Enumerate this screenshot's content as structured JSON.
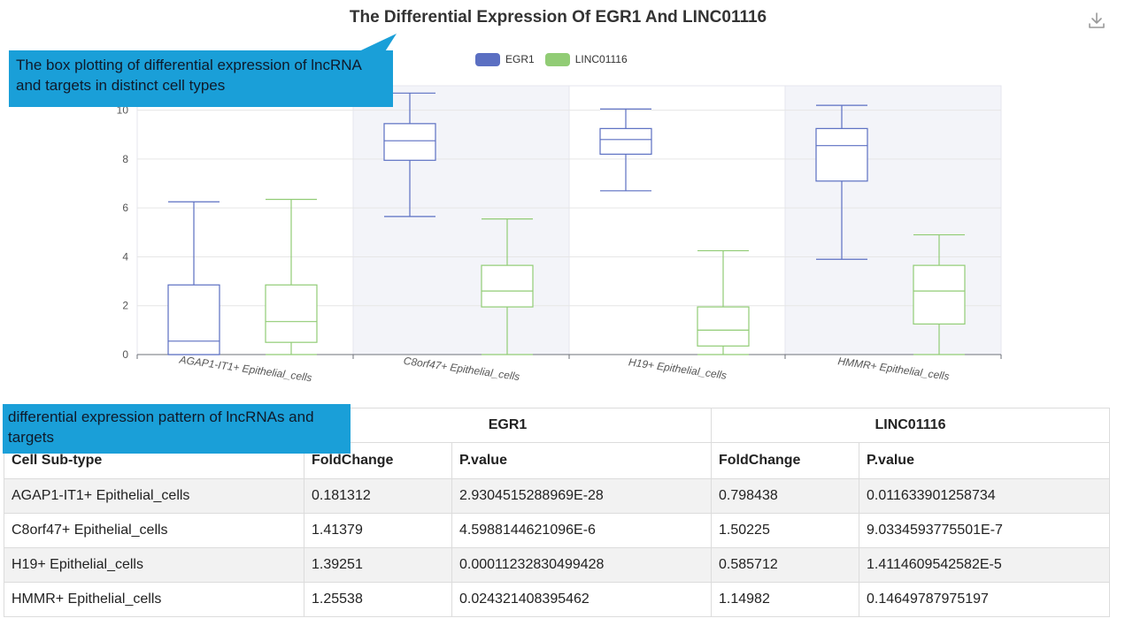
{
  "chart": {
    "title": "The Differential Expression Of EGR1 And LINC01116"
  },
  "colors": {
    "egr1": "#5b6fc2",
    "linc": "#91cc75",
    "callout_bg": "#1a9fd8",
    "alt_band": "#f3f4f9"
  },
  "icons": {
    "download": "download-icon"
  },
  "annotations": {
    "top": "The box plotting of differential expression of lncRNA and targets in distinct cell types",
    "bottom": "differential expression pattern of lncRNAs and targets"
  },
  "chart_data": {
    "type": "boxplot",
    "title": "The Differential Expression Of EGR1 And LINC01116",
    "categories": [
      "AGAP1-IT1+ Epithelial_cells",
      "C8orf47+ Epithelial_cells",
      "H19+ Epithelial_cells",
      "HMMR+ Epithelial_cells"
    ],
    "ylim": [
      0,
      11
    ],
    "yticks": [
      0,
      2,
      4,
      6,
      8,
      10
    ],
    "legend_position": "top-center",
    "grid": true,
    "series": [
      {
        "name": "EGR1",
        "boxes": [
          {
            "min": 0,
            "q1": 0,
            "median": 0.55,
            "q3": 2.85,
            "max": 6.25
          },
          {
            "min": 5.65,
            "q1": 7.95,
            "median": 8.75,
            "q3": 9.45,
            "max": 10.7
          },
          {
            "min": 6.7,
            "q1": 8.2,
            "median": 8.8,
            "q3": 9.25,
            "max": 10.05
          },
          {
            "min": 3.9,
            "q1": 7.1,
            "median": 8.55,
            "q3": 9.25,
            "max": 10.2
          }
        ]
      },
      {
        "name": "LINC01116",
        "boxes": [
          {
            "min": 0,
            "q1": 0.5,
            "median": 1.35,
            "q3": 2.85,
            "max": 6.35
          },
          {
            "min": 0,
            "q1": 1.95,
            "median": 2.6,
            "q3": 3.65,
            "max": 5.55
          },
          {
            "min": 0,
            "q1": 0.35,
            "median": 1.0,
            "q3": 1.95,
            "max": 4.25
          },
          {
            "min": 0,
            "q1": 1.25,
            "median": 2.6,
            "q3": 3.65,
            "max": 4.9
          }
        ]
      }
    ]
  },
  "table": {
    "group_headers": [
      "EGR1",
      "LINC01116"
    ],
    "columns": [
      "Cell Sub-type",
      "FoldChange",
      "P.value",
      "FoldChange",
      "P.value"
    ],
    "rows": [
      [
        "AGAP1-IT1+ Epithelial_cells",
        "0.181312",
        "2.9304515288969E-28",
        "0.798438",
        "0.011633901258734"
      ],
      [
        "C8orf47+ Epithelial_cells",
        "1.41379",
        "4.5988144621096E-6",
        "1.50225",
        "9.0334593775501E-7"
      ],
      [
        "H19+ Epithelial_cells",
        "1.39251",
        "0.00011232830499428",
        "0.585712",
        "1.4114609542582E-5"
      ],
      [
        "HMMR+ Epithelial_cells",
        "1.25538",
        "0.024321408395462",
        "1.14982",
        "0.14649787975197"
      ]
    ]
  }
}
